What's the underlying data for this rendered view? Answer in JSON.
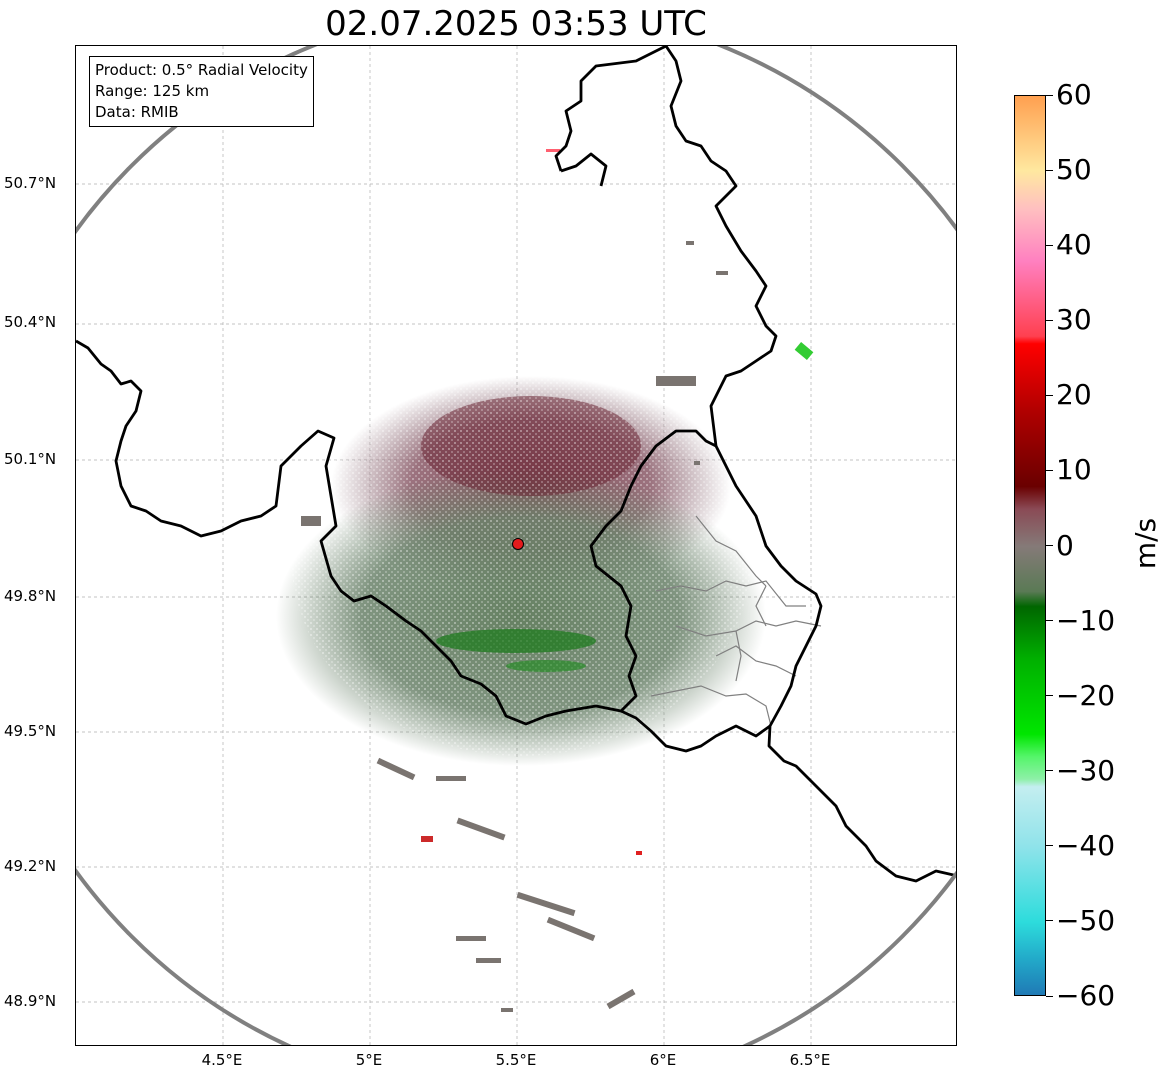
{
  "title": "02.07.2025 03:53 UTC",
  "info": {
    "product": "Product: 0.5° Radial Velocity",
    "range": "Range: 125 km",
    "data": "Data: RMIB"
  },
  "axes": {
    "lat_labels": [
      "50.7°N",
      "50.4°N",
      "50.1°N",
      "49.8°N",
      "49.5°N",
      "49.2°N",
      "48.9°N"
    ],
    "lon_labels": [
      "4.5°E",
      "5°E",
      "5.5°E",
      "6°E",
      "6.5°E"
    ],
    "lat_values": [
      50.7,
      50.4,
      50.1,
      49.8,
      49.5,
      49.2,
      48.9
    ],
    "lon_values": [
      4.5,
      5.0,
      5.5,
      6.0,
      6.5
    ],
    "lat_range": [
      48.8,
      51.0
    ],
    "lon_range": [
      4.0,
      7.0
    ]
  },
  "radar": {
    "lat": 49.91,
    "lon": 5.51,
    "marker_color": "#e41a1c"
  },
  "colorbar": {
    "unit": "m/s",
    "min": -60,
    "max": 60,
    "ticks": [
      60,
      50,
      40,
      30,
      20,
      10,
      0,
      -10,
      -20,
      -30,
      -40,
      -50,
      -60
    ],
    "tick_labels": [
      "60",
      "50",
      "40",
      "30",
      "20",
      "10",
      "0",
      "−10",
      "−20",
      "−30",
      "−40",
      "−50",
      "−60"
    ],
    "stops": [
      {
        "v": -60,
        "c": "#1f77b4"
      },
      {
        "v": -55,
        "c": "#22a9c9"
      },
      {
        "v": -50,
        "c": "#2ddcdc"
      },
      {
        "v": -40,
        "c": "#8fe3ea"
      },
      {
        "v": -32,
        "c": "#c4eef0"
      },
      {
        "v": -31,
        "c": "#8ef0a8"
      },
      {
        "v": -28,
        "c": "#55f56a"
      },
      {
        "v": -25,
        "c": "#00e600"
      },
      {
        "v": -15,
        "c": "#00b000"
      },
      {
        "v": -8,
        "c": "#006600"
      },
      {
        "v": -6,
        "c": "#5a7a55"
      },
      {
        "v": 0,
        "c": "#857a78"
      },
      {
        "v": 5,
        "c": "#8a4a55"
      },
      {
        "v": 8,
        "c": "#6a0000"
      },
      {
        "v": 18,
        "c": "#b00000"
      },
      {
        "v": 27,
        "c": "#ff0000"
      },
      {
        "v": 28,
        "c": "#ff4050"
      },
      {
        "v": 38,
        "c": "#ff80c0"
      },
      {
        "v": 45,
        "c": "#ffc0c0"
      },
      {
        "v": 50,
        "c": "#ffe8a0"
      },
      {
        "v": 60,
        "c": "#ffa050"
      }
    ]
  }
}
